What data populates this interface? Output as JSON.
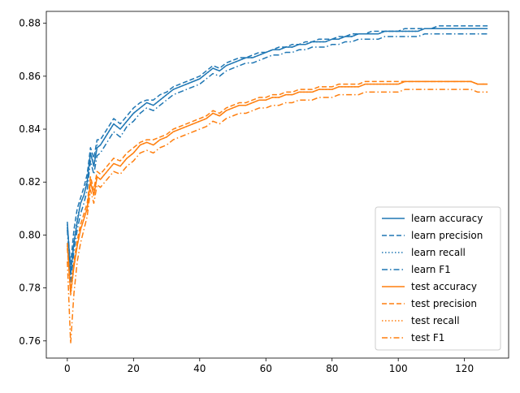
{
  "chart_data": {
    "type": "line",
    "title": "",
    "xlabel": "",
    "ylabel": "",
    "xlim": [
      -6.35,
      133.35
    ],
    "ylim": [
      0.7535,
      0.8845
    ],
    "xticks": [
      0,
      20,
      40,
      60,
      80,
      100,
      120
    ],
    "xtick_labels": [
      "0",
      "20",
      "40",
      "60",
      "80",
      "100",
      "120"
    ],
    "yticks": [
      0.76,
      0.78,
      0.8,
      0.82,
      0.84,
      0.86,
      0.88
    ],
    "ytick_labels": [
      "0.76",
      "0.78",
      "0.80",
      "0.82",
      "0.84",
      "0.86",
      "0.88"
    ],
    "grid": false,
    "legend_position": "lower-right",
    "x": [
      0,
      1,
      2,
      3,
      4,
      5,
      6,
      7,
      8,
      9,
      10,
      12,
      14,
      16,
      18,
      20,
      22,
      24,
      26,
      28,
      30,
      32,
      34,
      36,
      38,
      40,
      42,
      44,
      46,
      48,
      50,
      52,
      54,
      56,
      58,
      60,
      62,
      64,
      66,
      68,
      70,
      72,
      74,
      76,
      78,
      80,
      82,
      84,
      86,
      88,
      90,
      92,
      94,
      96,
      98,
      100,
      102,
      104,
      106,
      108,
      110,
      112,
      114,
      116,
      118,
      120,
      122,
      124,
      126,
      127
    ],
    "series": [
      {
        "name": "learn accuracy",
        "color": "#1f77b4",
        "dash": "solid",
        "values": [
          0.805,
          0.785,
          0.797,
          0.805,
          0.812,
          0.815,
          0.82,
          0.831,
          0.826,
          0.833,
          0.834,
          0.838,
          0.842,
          0.84,
          0.843,
          0.846,
          0.848,
          0.85,
          0.849,
          0.851,
          0.853,
          0.855,
          0.856,
          0.857,
          0.858,
          0.859,
          0.861,
          0.863,
          0.862,
          0.864,
          0.865,
          0.866,
          0.867,
          0.867,
          0.868,
          0.869,
          0.87,
          0.87,
          0.871,
          0.871,
          0.872,
          0.872,
          0.873,
          0.873,
          0.873,
          0.874,
          0.874,
          0.875,
          0.875,
          0.876,
          0.876,
          0.876,
          0.876,
          0.877,
          0.877,
          0.877,
          0.877,
          0.877,
          0.877,
          0.878,
          0.878,
          0.878,
          0.878,
          0.878,
          0.878,
          0.878,
          0.878,
          0.878,
          0.878,
          0.878
        ]
      },
      {
        "name": "learn precision",
        "color": "#1f77b4",
        "dash": "dashed",
        "values": [
          0.803,
          0.789,
          0.802,
          0.81,
          0.814,
          0.818,
          0.823,
          0.833,
          0.829,
          0.836,
          0.836,
          0.84,
          0.844,
          0.842,
          0.845,
          0.848,
          0.85,
          0.851,
          0.851,
          0.853,
          0.854,
          0.856,
          0.857,
          0.858,
          0.859,
          0.86,
          0.862,
          0.864,
          0.863,
          0.865,
          0.866,
          0.867,
          0.867,
          0.868,
          0.869,
          0.869,
          0.87,
          0.871,
          0.871,
          0.872,
          0.872,
          0.873,
          0.873,
          0.874,
          0.874,
          0.874,
          0.875,
          0.875,
          0.876,
          0.876,
          0.876,
          0.877,
          0.877,
          0.877,
          0.877,
          0.877,
          0.878,
          0.878,
          0.878,
          0.878,
          0.878,
          0.879,
          0.879,
          0.879,
          0.879,
          0.879,
          0.879,
          0.879,
          0.879,
          0.879
        ]
      },
      {
        "name": "learn recall",
        "color": "#1f77b4",
        "dash": "dotted",
        "values": [
          0.804,
          0.786,
          0.798,
          0.806,
          0.812,
          0.815,
          0.821,
          0.831,
          0.827,
          0.834,
          0.834,
          0.838,
          0.842,
          0.84,
          0.843,
          0.846,
          0.848,
          0.85,
          0.849,
          0.851,
          0.853,
          0.855,
          0.856,
          0.857,
          0.858,
          0.859,
          0.861,
          0.863,
          0.862,
          0.864,
          0.865,
          0.866,
          0.867,
          0.867,
          0.868,
          0.869,
          0.87,
          0.87,
          0.871,
          0.871,
          0.872,
          0.872,
          0.873,
          0.873,
          0.873,
          0.874,
          0.874,
          0.875,
          0.875,
          0.876,
          0.876,
          0.876,
          0.876,
          0.877,
          0.877,
          0.877,
          0.877,
          0.877,
          0.877,
          0.878,
          0.878,
          0.878,
          0.878,
          0.878,
          0.878,
          0.878,
          0.878,
          0.878,
          0.878,
          0.878
        ]
      },
      {
        "name": "learn F1",
        "color": "#1f77b4",
        "dash": "dashdot",
        "values": [
          0.802,
          0.781,
          0.794,
          0.802,
          0.808,
          0.812,
          0.817,
          0.828,
          0.823,
          0.83,
          0.831,
          0.835,
          0.839,
          0.837,
          0.841,
          0.843,
          0.846,
          0.848,
          0.847,
          0.849,
          0.851,
          0.853,
          0.854,
          0.855,
          0.856,
          0.857,
          0.859,
          0.861,
          0.86,
          0.862,
          0.863,
          0.864,
          0.865,
          0.865,
          0.866,
          0.867,
          0.868,
          0.868,
          0.869,
          0.869,
          0.87,
          0.87,
          0.871,
          0.871,
          0.871,
          0.872,
          0.872,
          0.873,
          0.873,
          0.874,
          0.874,
          0.874,
          0.874,
          0.875,
          0.875,
          0.875,
          0.875,
          0.875,
          0.875,
          0.876,
          0.876,
          0.876,
          0.876,
          0.876,
          0.876,
          0.876,
          0.876,
          0.876,
          0.876,
          0.876
        ]
      },
      {
        "name": "test accuracy",
        "color": "#ff7f0e",
        "dash": "solid",
        "values": [
          0.797,
          0.778,
          0.788,
          0.796,
          0.802,
          0.806,
          0.81,
          0.82,
          0.815,
          0.822,
          0.821,
          0.824,
          0.827,
          0.826,
          0.829,
          0.831,
          0.834,
          0.835,
          0.834,
          0.836,
          0.837,
          0.839,
          0.84,
          0.841,
          0.842,
          0.843,
          0.844,
          0.846,
          0.845,
          0.847,
          0.848,
          0.849,
          0.849,
          0.85,
          0.851,
          0.851,
          0.852,
          0.852,
          0.853,
          0.853,
          0.854,
          0.854,
          0.854,
          0.855,
          0.855,
          0.855,
          0.856,
          0.856,
          0.856,
          0.856,
          0.857,
          0.857,
          0.857,
          0.857,
          0.857,
          0.857,
          0.858,
          0.858,
          0.858,
          0.858,
          0.858,
          0.858,
          0.858,
          0.858,
          0.858,
          0.858,
          0.858,
          0.857,
          0.857,
          0.857
        ]
      },
      {
        "name": "test precision",
        "color": "#ff7f0e",
        "dash": "dashed",
        "values": [
          0.795,
          0.779,
          0.79,
          0.798,
          0.804,
          0.808,
          0.812,
          0.822,
          0.817,
          0.824,
          0.823,
          0.826,
          0.829,
          0.828,
          0.831,
          0.833,
          0.835,
          0.836,
          0.836,
          0.837,
          0.838,
          0.84,
          0.841,
          0.842,
          0.843,
          0.844,
          0.845,
          0.847,
          0.846,
          0.848,
          0.849,
          0.85,
          0.85,
          0.851,
          0.852,
          0.852,
          0.853,
          0.853,
          0.854,
          0.854,
          0.855,
          0.855,
          0.855,
          0.856,
          0.856,
          0.856,
          0.857,
          0.857,
          0.857,
          0.857,
          0.858,
          0.858,
          0.858,
          0.858,
          0.858,
          0.858,
          0.858,
          0.858,
          0.858,
          0.858,
          0.858,
          0.858,
          0.858,
          0.858,
          0.858,
          0.858,
          0.858,
          0.857,
          0.857,
          0.857
        ]
      },
      {
        "name": "test recall",
        "color": "#ff7f0e",
        "dash": "dotted",
        "values": [
          0.796,
          0.777,
          0.788,
          0.796,
          0.802,
          0.806,
          0.81,
          0.82,
          0.815,
          0.822,
          0.821,
          0.824,
          0.827,
          0.826,
          0.829,
          0.831,
          0.834,
          0.835,
          0.834,
          0.836,
          0.837,
          0.839,
          0.84,
          0.841,
          0.842,
          0.843,
          0.844,
          0.846,
          0.845,
          0.847,
          0.848,
          0.849,
          0.849,
          0.85,
          0.851,
          0.851,
          0.852,
          0.852,
          0.853,
          0.853,
          0.854,
          0.854,
          0.854,
          0.855,
          0.855,
          0.855,
          0.856,
          0.856,
          0.856,
          0.856,
          0.857,
          0.857,
          0.857,
          0.857,
          0.857,
          0.857,
          0.858,
          0.858,
          0.858,
          0.858,
          0.858,
          0.858,
          0.858,
          0.858,
          0.858,
          0.858,
          0.858,
          0.857,
          0.857,
          0.857
        ]
      },
      {
        "name": "test F1",
        "color": "#ff7f0e",
        "dash": "dashdot",
        "values": [
          0.79,
          0.759,
          0.778,
          0.79,
          0.797,
          0.802,
          0.807,
          0.817,
          0.812,
          0.819,
          0.818,
          0.821,
          0.824,
          0.823,
          0.826,
          0.828,
          0.831,
          0.832,
          0.831,
          0.833,
          0.834,
          0.836,
          0.837,
          0.838,
          0.839,
          0.84,
          0.841,
          0.843,
          0.842,
          0.844,
          0.845,
          0.846,
          0.846,
          0.847,
          0.848,
          0.848,
          0.849,
          0.849,
          0.85,
          0.85,
          0.851,
          0.851,
          0.851,
          0.852,
          0.852,
          0.852,
          0.853,
          0.853,
          0.853,
          0.853,
          0.854,
          0.854,
          0.854,
          0.854,
          0.854,
          0.854,
          0.855,
          0.855,
          0.855,
          0.855,
          0.855,
          0.855,
          0.855,
          0.855,
          0.855,
          0.855,
          0.855,
          0.854,
          0.854,
          0.854
        ]
      }
    ]
  }
}
